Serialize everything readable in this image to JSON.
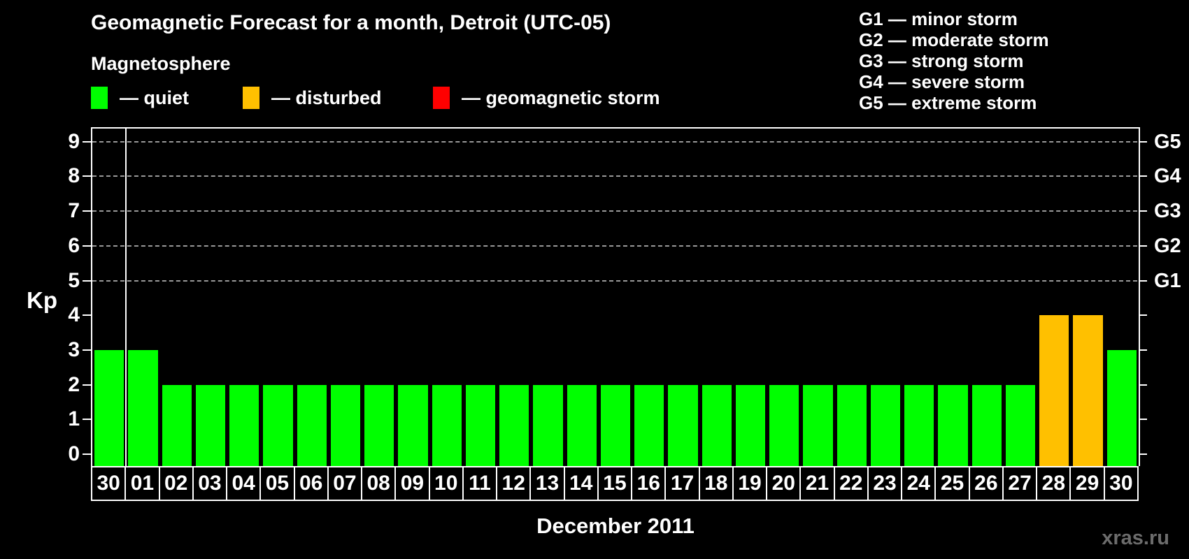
{
  "title": "Geomagnetic Forecast for a month, Detroit (UTC-05)",
  "subtitle": "Magnetosphere",
  "legend": [
    {
      "status": "quiet",
      "color": "#00ff00",
      "label": "— quiet"
    },
    {
      "status": "disturbed",
      "color": "#ffc000",
      "label": "— disturbed"
    },
    {
      "status": "storm",
      "color": "#ff0000",
      "label": "— geomagnetic storm"
    }
  ],
  "g_scale_legend": [
    "G1 — minor storm",
    "G2 — moderate storm",
    "G3 — strong storm",
    "G4 — severe storm",
    "G5 — extreme storm"
  ],
  "watermark": "xras.ru",
  "chart_data": {
    "type": "bar",
    "title": "Geomagnetic Forecast for a month, Detroit (UTC-05)",
    "xlabel": "December 2011",
    "ylabel": "Kp",
    "ylim": [
      0,
      9
    ],
    "y_ticks": [
      0,
      1,
      2,
      3,
      4,
      5,
      6,
      7,
      8,
      9
    ],
    "grid": "horizontal dashed lines at Kp 5-9 (G1-G5 storm levels)",
    "gridlines_at_kp": [
      5,
      6,
      7,
      8,
      9
    ],
    "legend_position": "top-left",
    "right_axis_labels": [
      {
        "kp": 5,
        "label": "G1"
      },
      {
        "kp": 6,
        "label": "G2"
      },
      {
        "kp": 7,
        "label": "G3"
      },
      {
        "kp": 8,
        "label": "G4"
      },
      {
        "kp": 9,
        "label": "G5"
      }
    ],
    "categories": [
      "30",
      "01",
      "02",
      "03",
      "04",
      "05",
      "06",
      "07",
      "08",
      "09",
      "10",
      "11",
      "12",
      "13",
      "14",
      "15",
      "16",
      "17",
      "18",
      "19",
      "20",
      "21",
      "22",
      "23",
      "24",
      "25",
      "26",
      "27",
      "28",
      "29",
      "30"
    ],
    "values": [
      3,
      3,
      2,
      2,
      2,
      2,
      2,
      2,
      2,
      2,
      2,
      2,
      2,
      2,
      2,
      2,
      2,
      2,
      2,
      2,
      2,
      2,
      2,
      2,
      2,
      2,
      2,
      2,
      4,
      4,
      3
    ],
    "statuses": [
      "quiet",
      "quiet",
      "quiet",
      "quiet",
      "quiet",
      "quiet",
      "quiet",
      "quiet",
      "quiet",
      "quiet",
      "quiet",
      "quiet",
      "quiet",
      "quiet",
      "quiet",
      "quiet",
      "quiet",
      "quiet",
      "quiet",
      "quiet",
      "quiet",
      "quiet",
      "quiet",
      "quiet",
      "quiet",
      "quiet",
      "quiet",
      "quiet",
      "disturbed",
      "disturbed",
      "quiet"
    ],
    "separator_after_index": 0,
    "colors": {
      "quiet": "#00ff00",
      "disturbed": "#ffc000",
      "storm": "#ff0000",
      "axis": "#ffffff",
      "grid": "#9a9a9a",
      "background": "#000000",
      "watermark": "#6c6c6c"
    }
  }
}
